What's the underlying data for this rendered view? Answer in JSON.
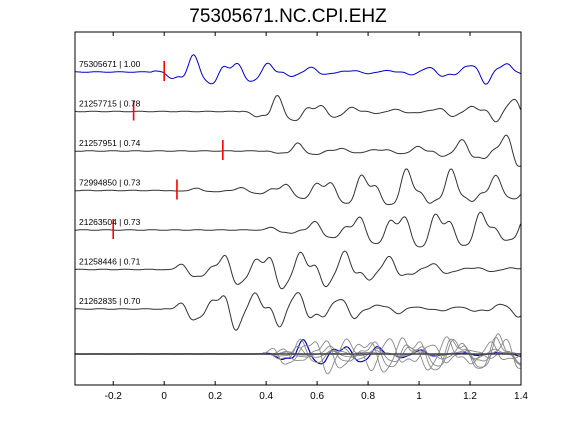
{
  "title": "75305671.NC.CPI.EHZ",
  "chart_data": {
    "type": "line",
    "title": "75305671.NC.CPI.EHZ",
    "xlabel": "",
    "ylabel": "",
    "xlim": [
      -0.35,
      1.4
    ],
    "x_ticks": [
      "-0.2",
      "0",
      "0.2",
      "0.4",
      "0.6",
      "0.8",
      "1",
      "1.2",
      "1.4"
    ],
    "x_tick_values": [
      -0.2,
      0,
      0.2,
      0.4,
      0.6,
      0.8,
      1.0,
      1.2,
      1.4
    ],
    "grid": false,
    "colors": {
      "master": "#0000cc",
      "trace": "#333333",
      "pick": "#ff0000",
      "stack": "#888888"
    },
    "series": [
      {
        "label": "75305671 | 1.00",
        "pick": 0.0,
        "onset": -0.05,
        "master": true
      },
      {
        "label": "21257715 | 0.78",
        "pick": -0.12,
        "onset": 0.3
      },
      {
        "label": "21257951 | 0.74",
        "pick": 0.23,
        "onset": 0.4
      },
      {
        "label": "72994850 | 0.73",
        "pick": 0.05,
        "onset": 0.02
      },
      {
        "label": "21263504 | 0.73",
        "pick": -0.2,
        "onset": 0.33
      },
      {
        "label": "21258446 | 0.71",
        "pick": null,
        "onset": 0.0
      },
      {
        "label": "21262835 | 0.70",
        "pick": null,
        "onset": 0.02
      }
    ]
  }
}
